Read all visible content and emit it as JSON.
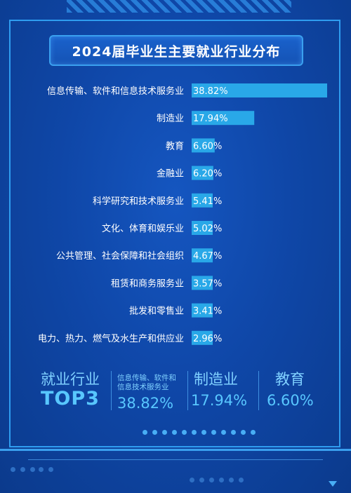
{
  "chart_data": {
    "type": "bar",
    "orientation": "horizontal",
    "title": "2024届毕业生主要就业行业分布",
    "categories": [
      "信息传输、软件和信息技术服务业",
      "制造业",
      "教育",
      "金融业",
      "科学研究和技术服务业",
      "文化、体育和娱乐业",
      "公共管理、社会保障和社会组织",
      "租赁和商务服务业",
      "批发和零售业",
      "电力、热力、燃气及水生产和供应业"
    ],
    "values": [
      38.82,
      17.94,
      6.6,
      6.2,
      5.41,
      5.02,
      4.67,
      3.57,
      3.41,
      2.96
    ],
    "value_labels": [
      "38.82%",
      "17.94%",
      "6.60%",
      "6.20%",
      "5.41%",
      "5.02%",
      "4.67%",
      "3.57%",
      "3.41%",
      "2.96%"
    ],
    "unit": "%",
    "bar_color": "#29a8e8",
    "label_color": "#ffffff"
  },
  "summary": {
    "heading_line1": "就业行业",
    "heading_line2": "TOP3",
    "items": [
      {
        "name_line1": "信息传输、软件和",
        "name_line2": "信息技术服务业",
        "value": "38.82%"
      },
      {
        "name": "制造业",
        "value": "17.94%"
      },
      {
        "name": "教育",
        "value": "6.60%"
      }
    ]
  },
  "colors": {
    "background": "#0f47a8",
    "frame": "#2f9df0",
    "accent": "#58c7ff"
  }
}
